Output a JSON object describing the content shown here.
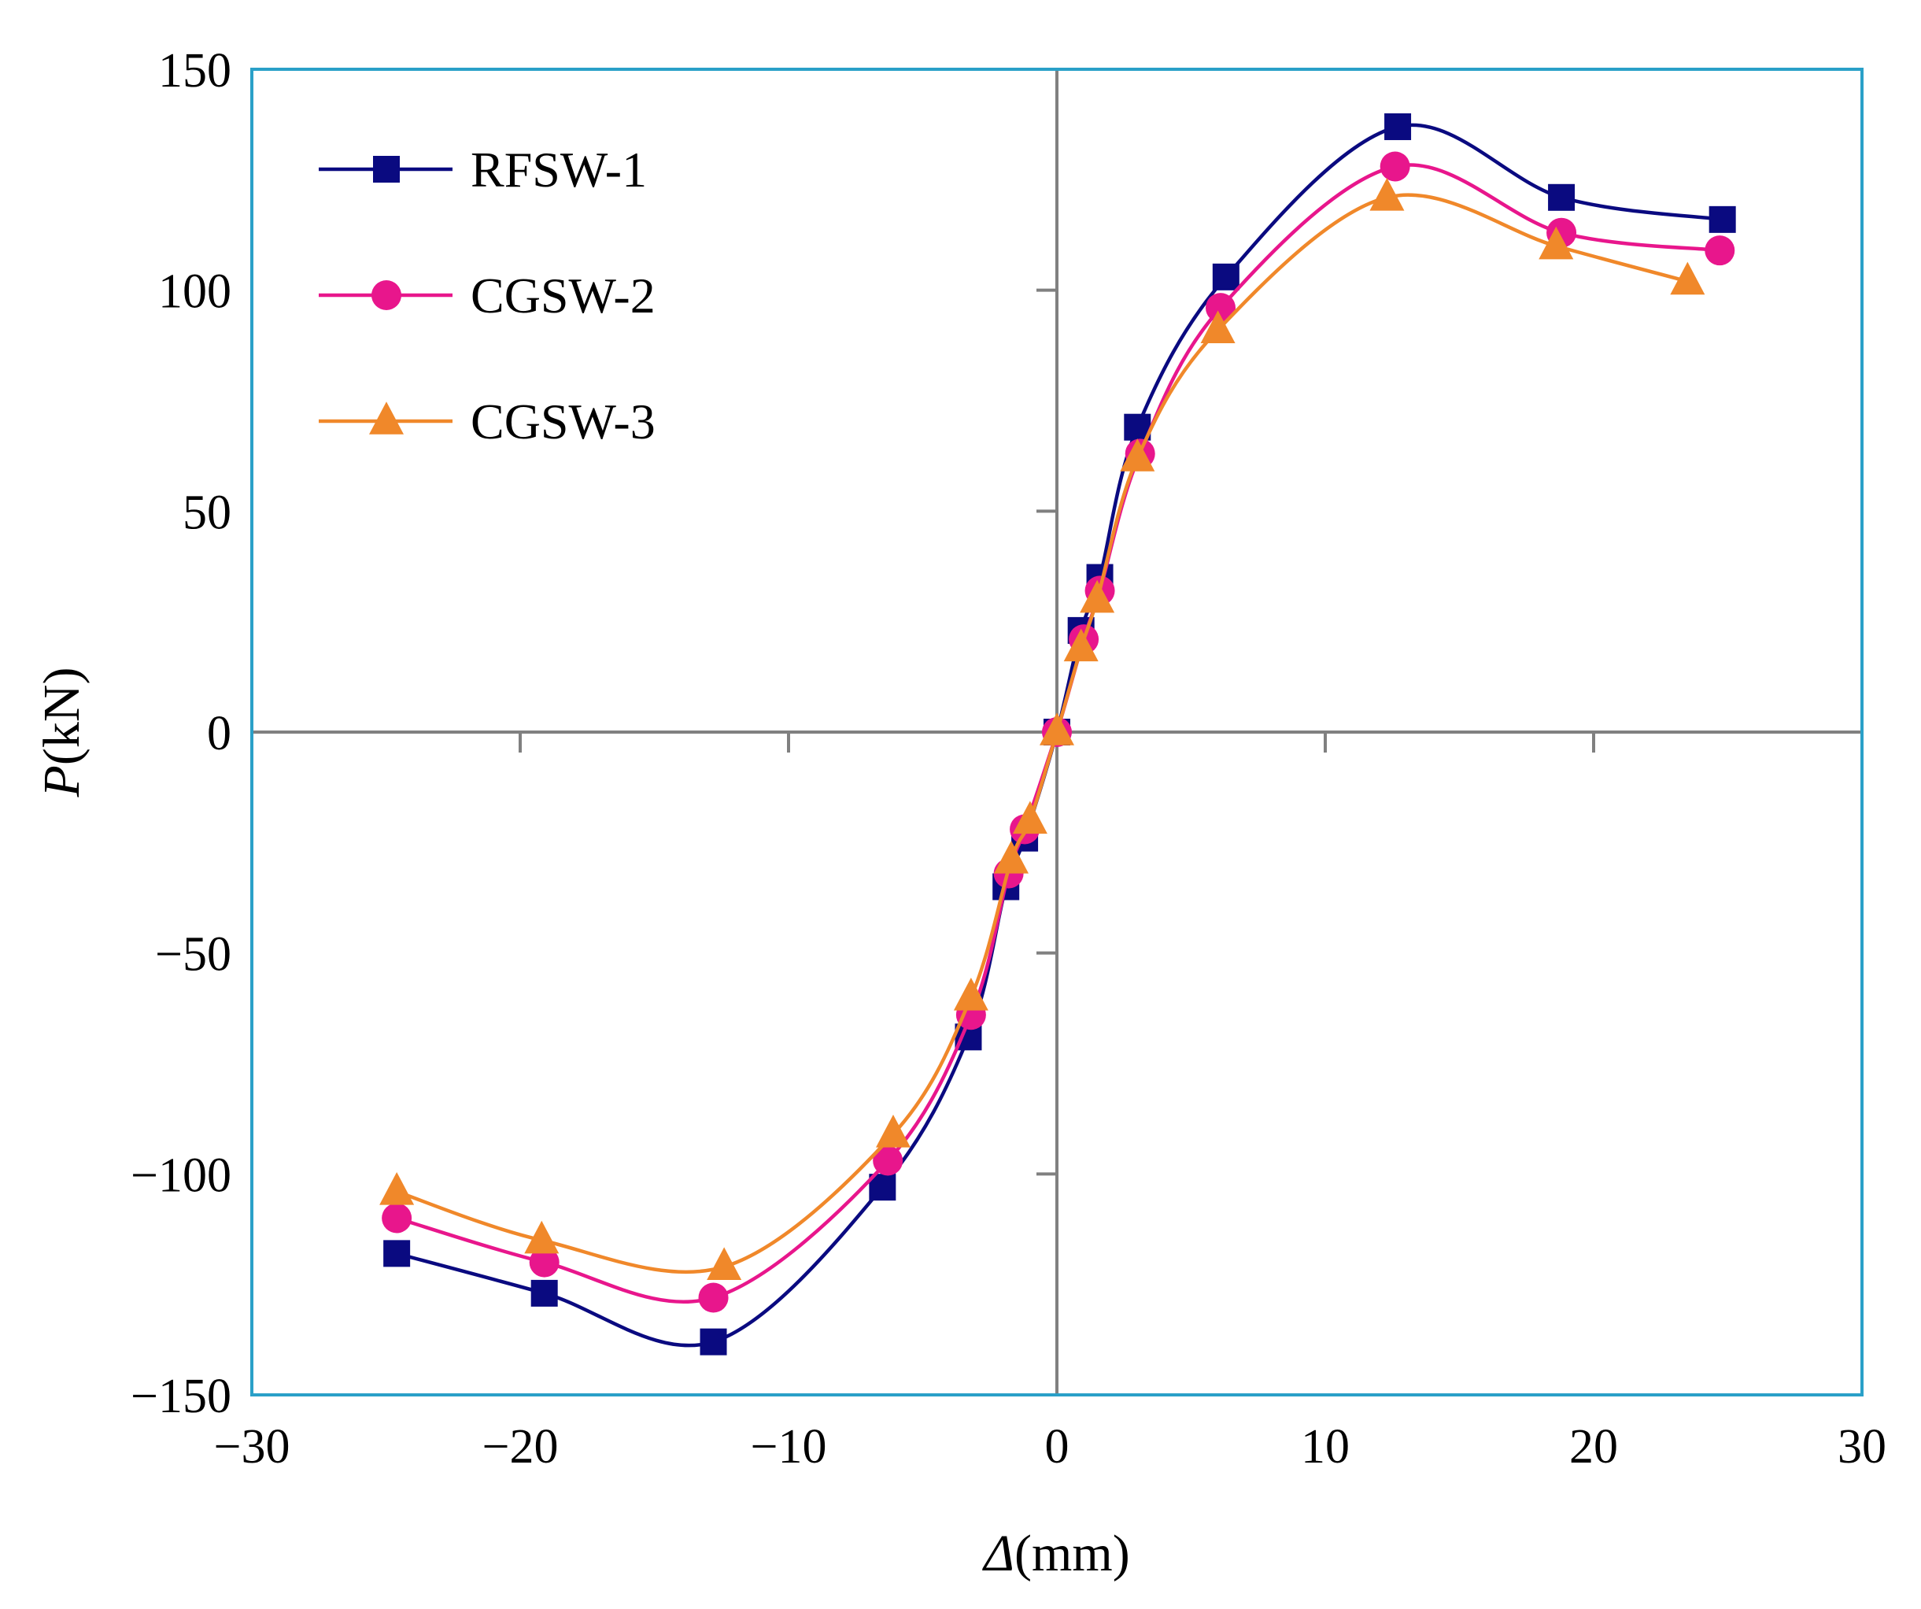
{
  "chart_data": {
    "type": "line",
    "title": "",
    "xlabel_symbol": "Δ",
    "xlabel_unit": "(mm)",
    "ylabel_symbol": "P",
    "ylabel_unit": "(kN)",
    "xlim": [
      -30,
      30
    ],
    "ylim": [
      -150,
      150
    ],
    "xticks": [
      -30,
      -20,
      -10,
      0,
      10,
      20,
      30
    ],
    "yticks": [
      -150,
      -100,
      -50,
      0,
      50,
      100,
      150
    ],
    "xtick_labels": [
      "−30",
      "−20",
      "−10",
      "0",
      "10",
      "20",
      "30"
    ],
    "ytick_labels": [
      "−150",
      "−100",
      "−50",
      "0",
      "50",
      "100",
      "150"
    ],
    "grid": false,
    "legend_position": "top-left",
    "frame_color": "#2AA0C8",
    "axis_line_color": "#808080",
    "series": [
      {
        "name": "RFSW-1",
        "color": "#0A0A80",
        "marker": "square",
        "x": [
          -24.6,
          -19.1,
          -12.8,
          -6.5,
          -3.3,
          -1.9,
          -1.2,
          0,
          0.9,
          1.6,
          3.0,
          6.3,
          12.7,
          18.8,
          24.8
        ],
        "y": [
          -118,
          -127,
          -138,
          -103,
          -69,
          -35,
          -24,
          0,
          23,
          35,
          69,
          103,
          137,
          121,
          116
        ]
      },
      {
        "name": "CGSW-2",
        "color": "#E8168C",
        "marker": "circle",
        "x": [
          -24.6,
          -19.1,
          -12.8,
          -6.3,
          -3.2,
          -1.8,
          -1.2,
          0,
          1.0,
          1.6,
          3.1,
          6.1,
          12.6,
          18.8,
          24.7
        ],
        "y": [
          -110,
          -120,
          -128,
          -97,
          -64,
          -32,
          -22,
          0,
          21,
          32,
          63,
          96,
          128,
          113,
          109
        ]
      },
      {
        "name": "CGSW-3",
        "color": "#F0882A",
        "marker": "triangle",
        "x": [
          -24.6,
          -19.2,
          -12.4,
          -6.1,
          -3.2,
          -1.7,
          -1.0,
          0,
          0.9,
          1.5,
          3.0,
          6.0,
          12.3,
          18.6,
          23.5
        ],
        "y": [
          -104,
          -115,
          -121,
          -91,
          -60,
          -29,
          -20,
          0,
          19,
          30,
          62,
          91,
          121,
          110,
          102
        ]
      }
    ]
  }
}
